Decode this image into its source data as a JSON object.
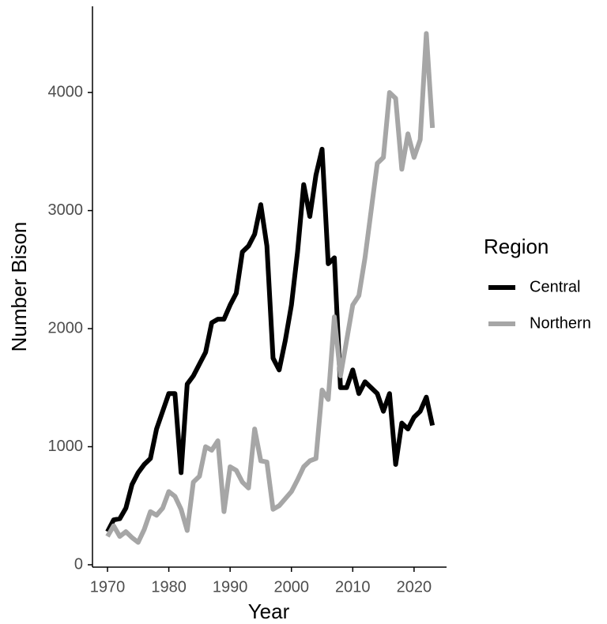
{
  "chart_data": {
    "type": "line",
    "x_label": "Year",
    "y_label": "Number Bison",
    "legend_title": "Region",
    "x": [
      1970,
      1971,
      1972,
      1973,
      1974,
      1975,
      1976,
      1977,
      1978,
      1979,
      1980,
      1981,
      1982,
      1983,
      1984,
      1985,
      1986,
      1987,
      1988,
      1989,
      1990,
      1991,
      1992,
      1993,
      1994,
      1995,
      1996,
      1997,
      1998,
      1999,
      2000,
      2001,
      2002,
      2003,
      2004,
      2005,
      2006,
      2007,
      2008,
      2009,
      2010,
      2011,
      2012,
      2013,
      2014,
      2015,
      2016,
      2017,
      2018,
      2019,
      2020,
      2021,
      2022,
      2023
    ],
    "series": [
      {
        "name": "Central",
        "color": "#000000",
        "values": [
          280,
          380,
          390,
          480,
          680,
          780,
          850,
          900,
          1150,
          1300,
          1450,
          1450,
          780,
          1530,
          1600,
          1700,
          1800,
          2050,
          2080,
          2080,
          2200,
          2300,
          2650,
          2700,
          2800,
          3050,
          2700,
          1750,
          1650,
          1900,
          2200,
          2650,
          3220,
          2950,
          3300,
          3520,
          2550,
          2600,
          1500,
          1500,
          1650,
          1450,
          1550,
          1500,
          1450,
          1300,
          1450,
          850,
          1200,
          1150,
          1250,
          1300,
          1420,
          1180
        ]
      },
      {
        "name": "Northern",
        "color": "#a6a6a6",
        "values": [
          240,
          330,
          240,
          280,
          230,
          190,
          300,
          450,
          420,
          480,
          620,
          580,
          470,
          290,
          700,
          750,
          1000,
          970,
          1050,
          450,
          830,
          800,
          700,
          650,
          1150,
          880,
          870,
          470,
          500,
          560,
          620,
          720,
          830,
          880,
          900,
          1480,
          1400,
          2100,
          1600,
          1900,
          2200,
          2280,
          2600,
          3000,
          3400,
          3450,
          4000,
          3950,
          3350,
          3650,
          3450,
          3600,
          4500,
          3700
        ]
      }
    ],
    "xlim": [
      1967.55,
      2025.3
    ],
    "xticks": [
      1970,
      1980,
      1990,
      2000,
      2010,
      2020
    ],
    "ylim": [
      -20,
      4730
    ],
    "yticks": [
      0,
      1000,
      2000,
      3000,
      4000
    ],
    "grid": false
  }
}
